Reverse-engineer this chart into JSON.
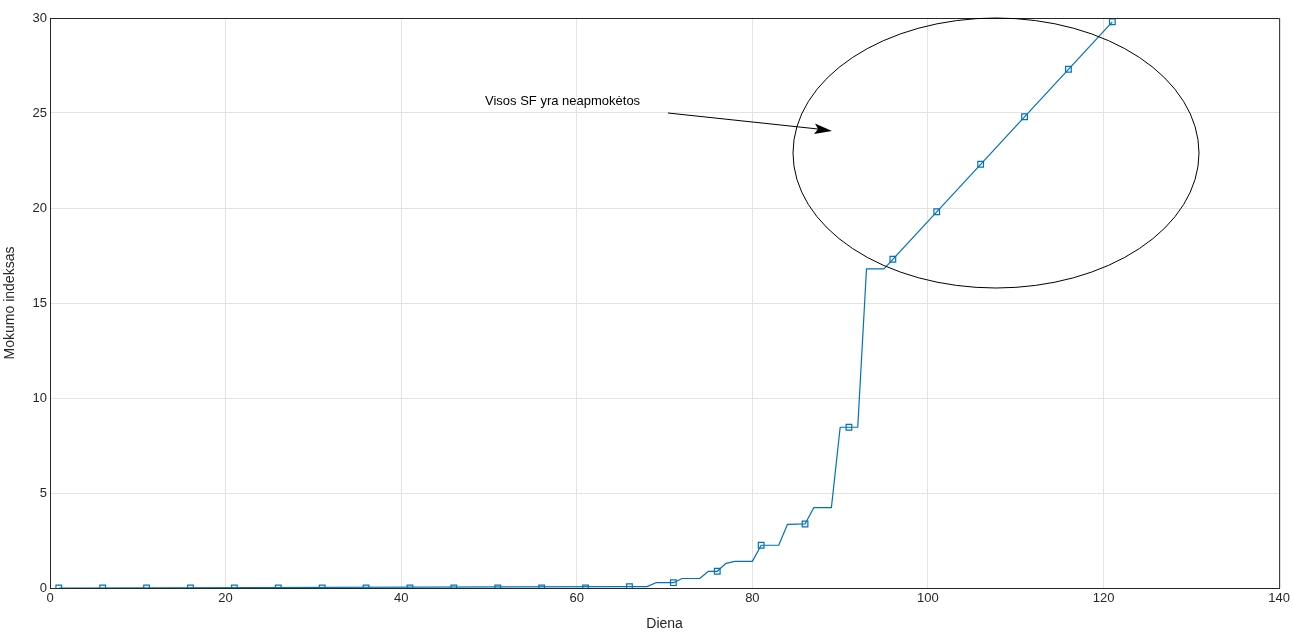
{
  "chart_data": {
    "type": "line",
    "xlabel": "Diena",
    "ylabel": "Mokumo indeksas",
    "xlim": [
      0,
      140
    ],
    "xticks": [
      0,
      20,
      40,
      60,
      80,
      100,
      120,
      140
    ],
    "ylim": [
      0,
      30
    ],
    "yticks": [
      0,
      5,
      10,
      15,
      20,
      25,
      30
    ],
    "grid": true,
    "legend": false,
    "annotations": [
      "Visos SF yra neapmokėtos"
    ],
    "series": [
      {
        "type": "line",
        "marker": "none",
        "color": "#0072bd",
        "x": [
          1,
          66,
          68,
          69,
          71,
          72,
          74,
          75,
          76,
          77,
          78,
          80,
          81,
          83,
          84,
          86,
          87,
          89,
          90,
          92,
          93,
          95,
          96,
          101,
          106,
          111,
          116,
          121
        ],
        "values": [
          0,
          0.07,
          0.07,
          0.28,
          0.28,
          0.5,
          0.5,
          0.88,
          0.88,
          1.3,
          1.4,
          1.4,
          2.25,
          2.25,
          3.35,
          3.37,
          4.23,
          4.23,
          8.46,
          8.46,
          16.8,
          16.8,
          17.3,
          19.8,
          22.3,
          24.8,
          27.3,
          29.8
        ]
      },
      {
        "type": "scatter",
        "marker": "square",
        "color": "#0072bd",
        "x": [
          1,
          6,
          11,
          16,
          21,
          26,
          31,
          36,
          41,
          46,
          51,
          56,
          61,
          66,
          71,
          76,
          81,
          86,
          91,
          96,
          101,
          106,
          111,
          116,
          121
        ],
        "values": [
          0,
          0,
          0,
          0,
          0,
          0,
          0,
          0,
          0,
          0,
          0,
          0,
          0,
          0.07,
          0.28,
          0.88,
          2.25,
          3.37,
          8.46,
          17.3,
          19.8,
          22.3,
          24.8,
          27.3,
          29.8
        ]
      }
    ]
  }
}
